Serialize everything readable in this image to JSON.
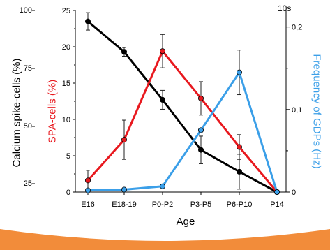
{
  "chart_data": {
    "type": "line",
    "categories": [
      "E16",
      "E18-19",
      "P0-P2",
      "P3-P5",
      "P6-P10",
      "P14"
    ],
    "xlabel": "Age",
    "corner_label": "10s",
    "outer_left_axis": {
      "label": "Calcium spike-cells (%)",
      "ticks": [
        "100",
        "75",
        "50",
        "25"
      ],
      "color": "#000000"
    },
    "left_axis": {
      "label": "SPA-cells (%)",
      "label_color": "#e8181e",
      "ylim": [
        0,
        25
      ],
      "ticks": [
        "0",
        "5",
        "10",
        "15",
        "20",
        "25"
      ]
    },
    "right_axis": {
      "label": "Frequency of GDPs (Hz)",
      "label_color": "#3b9fe8",
      "ylim": [
        0,
        0.22
      ],
      "ticks": [
        "0",
        "0,1",
        "0,2"
      ]
    },
    "series": [
      {
        "axis": "left",
        "color": "#000000",
        "values": [
          23.5,
          19.3,
          12.7,
          5.8,
          2.8,
          0
        ],
        "errors": [
          1.2,
          0.6,
          1.3,
          1.9,
          2.4,
          0
        ]
      },
      {
        "axis": "left",
        "color": "#e8181e",
        "values": [
          1.6,
          7.2,
          19.4,
          12.9,
          6.2,
          0
        ],
        "errors": [
          1.4,
          2.7,
          2.3,
          2.3,
          1.7,
          0
        ]
      },
      {
        "axis": "right",
        "color": "#3b9fe8",
        "values": [
          0.002,
          0.003,
          0.007,
          0.075,
          0.145,
          0
        ],
        "errors": [
          0,
          0,
          0,
          0,
          0.027,
          0
        ]
      }
    ],
    "grid": false,
    "legend": "none"
  }
}
